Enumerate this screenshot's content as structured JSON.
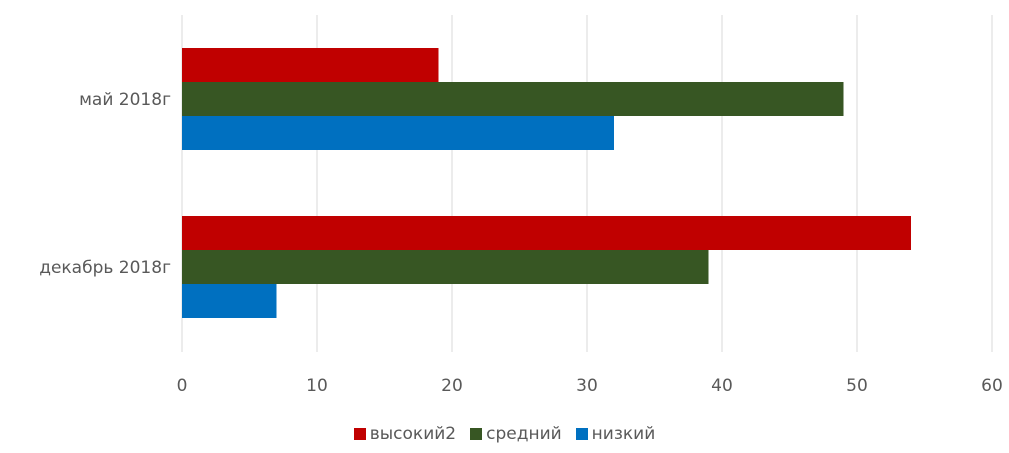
{
  "chart_data": {
    "type": "bar",
    "orientation": "horizontal",
    "categories": [
      "май 2018г",
      "декабрь 2018г"
    ],
    "series": [
      {
        "name": "высокий2",
        "color": "#C00000",
        "values": [
          19,
          54
        ]
      },
      {
        "name": "средний",
        "color": "#375623",
        "values": [
          49,
          39
        ]
      },
      {
        "name": "низкий",
        "color": "#0070C0",
        "values": [
          32,
          7
        ]
      }
    ],
    "xlim": [
      0,
      60
    ],
    "xticks": [
      0,
      10,
      20,
      30,
      40,
      50,
      60
    ],
    "grid": true,
    "legend_position": "bottom"
  }
}
